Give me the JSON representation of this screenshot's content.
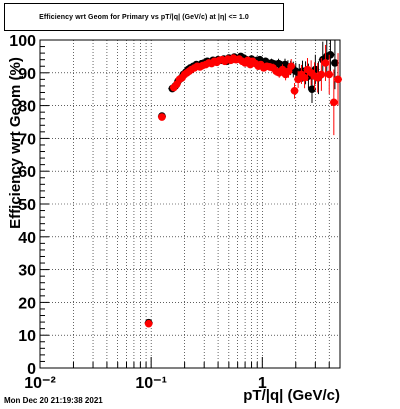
{
  "chart_data": {
    "type": "scatter",
    "title": "Efficiency wrt Geom for Primary vs pT/|q| (GeV/c) at |η| <= 1.0",
    "xlabel": "pT/|q| (GeV/c)",
    "ylabel": "Efficiency wrt Geom (%)",
    "xscale": "log",
    "xlim": [
      0.01,
      5
    ],
    "ylim": [
      0,
      100
    ],
    "grid": true,
    "x_tick_labels": [
      "10⁻²",
      "10⁻¹",
      "1"
    ],
    "y_tick_labels": [
      "0",
      "10",
      "20",
      "30",
      "40",
      "50",
      "60",
      "70",
      "80",
      "90",
      "100"
    ],
    "series": [
      {
        "color": "#000000",
        "x": [
          0.095,
          0.125,
          0.155,
          0.165,
          0.175,
          0.185,
          0.195,
          0.205,
          0.215,
          0.225,
          0.24,
          0.255,
          0.27,
          0.285,
          0.3,
          0.32,
          0.34,
          0.36,
          0.38,
          0.4,
          0.425,
          0.45,
          0.475,
          0.5,
          0.53,
          0.56,
          0.6,
          0.64,
          0.68,
          0.72,
          0.76,
          0.8,
          0.85,
          0.9,
          0.95,
          1.0,
          1.07,
          1.14,
          1.21,
          1.3,
          1.4,
          1.5,
          1.6,
          1.7,
          1.8,
          1.9,
          2.0,
          2.15,
          2.3,
          2.45,
          2.6,
          2.8,
          3.0,
          3.2,
          3.5,
          3.8,
          4.1,
          4.5
        ],
        "y": [
          13.8,
          76.8,
          85.2,
          86.0,
          87.5,
          88.3,
          89.5,
          90.2,
          91.0,
          91.5,
          92.0,
          92.5,
          92.2,
          92.8,
          93.0,
          93.5,
          93.2,
          93.8,
          93.5,
          94.0,
          93.8,
          94.2,
          93.5,
          94.5,
          94.0,
          94.8,
          94.2,
          95.0,
          94.5,
          94.0,
          93.8,
          94.2,
          93.5,
          93.8,
          94.0,
          93.2,
          93.5,
          92.8,
          93.0,
          92.5,
          92.8,
          92.0,
          92.5,
          91.8,
          91.5,
          91.0,
          90.5,
          89.8,
          90.5,
          90.0,
          89.0,
          85.0,
          91.0,
          88.5,
          94.0,
          95.0,
          95.5,
          93.0
        ],
        "yerr": [
          0.8,
          0.8,
          0.9,
          0.8,
          0.8,
          0.7,
          0.7,
          0.7,
          0.6,
          0.6,
          0.6,
          0.6,
          0.6,
          0.6,
          0.6,
          0.6,
          0.6,
          0.6,
          0.6,
          0.6,
          0.6,
          0.6,
          0.6,
          0.6,
          0.7,
          0.7,
          0.7,
          0.7,
          0.8,
          0.8,
          0.8,
          0.9,
          0.9,
          1.0,
          1.0,
          1.1,
          1.1,
          1.2,
          1.3,
          1.4,
          1.5,
          1.6,
          1.8,
          2.0,
          2.2,
          2.4,
          2.6,
          2.9,
          3.2,
          3.5,
          3.8,
          4.2,
          4.5,
          5.0,
          5.5,
          6.0,
          7.0,
          8.0
        ]
      },
      {
        "color": "#ff0000",
        "x": [
          0.095,
          0.125,
          0.16,
          0.17,
          0.18,
          0.19,
          0.2,
          0.21,
          0.22,
          0.23,
          0.245,
          0.26,
          0.275,
          0.29,
          0.31,
          0.33,
          0.35,
          0.37,
          0.39,
          0.41,
          0.435,
          0.46,
          0.49,
          0.52,
          0.55,
          0.58,
          0.62,
          0.66,
          0.7,
          0.74,
          0.78,
          0.82,
          0.87,
          0.92,
          0.97,
          1.03,
          1.1,
          1.17,
          1.25,
          1.33,
          1.42,
          1.52,
          1.62,
          1.72,
          1.82,
          1.95,
          2.1,
          2.25,
          2.4,
          2.55,
          2.75,
          2.95,
          3.15,
          3.4,
          3.7,
          4.0,
          4.4,
          4.8
        ],
        "y": [
          13.5,
          76.5,
          85.5,
          86.5,
          88.0,
          88.5,
          89.5,
          90.0,
          90.5,
          91.0,
          91.5,
          92.0,
          91.8,
          92.2,
          92.5,
          93.0,
          92.8,
          93.5,
          93.2,
          93.8,
          94.0,
          93.5,
          94.2,
          93.8,
          94.5,
          94.0,
          94.2,
          93.5,
          93.0,
          93.8,
          92.5,
          93.5,
          92.8,
          92.0,
          92.5,
          91.5,
          92.0,
          91.8,
          91.5,
          90.5,
          90.0,
          91.0,
          89.5,
          90.5,
          92.0,
          84.5,
          88.0,
          89.5,
          88.5,
          91.0,
          90.0,
          89.0,
          88.5,
          89.5,
          93.0,
          89.5,
          81.0,
          88.0
        ],
        "yerr": [
          0.8,
          0.8,
          0.9,
          0.8,
          0.8,
          0.7,
          0.7,
          0.7,
          0.6,
          0.6,
          0.6,
          0.6,
          0.6,
          0.6,
          0.6,
          0.6,
          0.6,
          0.6,
          0.6,
          0.6,
          0.6,
          0.6,
          0.6,
          0.7,
          0.7,
          0.7,
          0.7,
          0.7,
          0.8,
          0.8,
          0.8,
          0.9,
          0.9,
          1.0,
          1.0,
          1.1,
          1.1,
          1.2,
          1.3,
          1.4,
          1.5,
          1.6,
          1.8,
          2.0,
          2.2,
          2.4,
          2.6,
          2.9,
          3.2,
          3.5,
          3.8,
          4.2,
          4.5,
          5.0,
          5.5,
          6.0,
          10.0,
          8.0
        ]
      }
    ]
  },
  "footer_text": "Mon Dec 20 21:19:38 2021"
}
